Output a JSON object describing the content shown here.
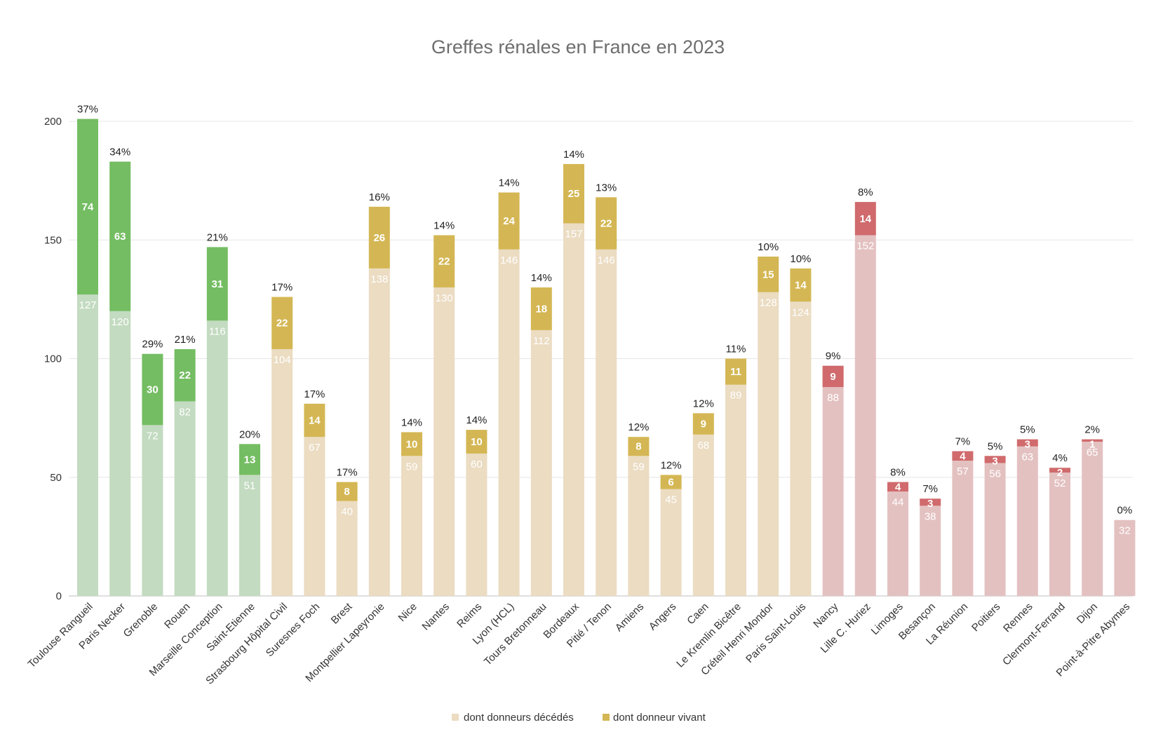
{
  "colors": {
    "green_dark": "#74bd62",
    "green_light": "#c3dbc0",
    "gold_dark": "#d4b754",
    "gold_light": "#ebdcc2",
    "red_dark": "#d06a6c",
    "red_light": "#e4c1c1",
    "title": "#6e6e6e",
    "axis_text": "#333333",
    "grid": "#e6e6e6"
  },
  "chart_data": {
    "type": "bar",
    "stacked": true,
    "title": "Greffes rénales en France en 2023",
    "ylim": [
      0,
      200
    ],
    "yticks": [
      0,
      50,
      100,
      150,
      200
    ],
    "grid": true,
    "legend_position": "bottom-center",
    "categories": [
      "Toulouse Rangueil",
      "Paris Necker",
      "Grenoble",
      "Rouen",
      "Marseille Conception",
      "Saint-Etienne",
      "Strasbourg Hôpital Civil",
      "Suresnes Foch",
      "Brest",
      "Montpellier Lapeyronie",
      "Nice",
      "Nantes",
      "Reims",
      "Lyon (HCL)",
      "Tours Bretonneau",
      "Bordeaux",
      "Pitié / Tenon",
      "Amiens",
      "Angers",
      "Caen",
      "Le Kremlin Bicêtre",
      "Créteil Henri Mondor",
      "Paris Saint-Louis",
      "Nancy",
      "Lille C. Huriez",
      "Limoges",
      "Besançon",
      "La Réunion",
      "Poitiers",
      "Rennes",
      "Clermont-Ferrand",
      "Dijon",
      "Point-à-Pitre Abymes"
    ],
    "series": [
      {
        "name": "dont donneurs décédés",
        "values": [
          127,
          120,
          72,
          82,
          116,
          51,
          104,
          67,
          40,
          138,
          59,
          130,
          60,
          146,
          112,
          157,
          146,
          59,
          45,
          68,
          89,
          128,
          124,
          88,
          152,
          44,
          38,
          57,
          56,
          63,
          52,
          65,
          32
        ]
      },
      {
        "name": "dont donneur vivant",
        "values": [
          74,
          63,
          30,
          22,
          31,
          13,
          22,
          14,
          8,
          26,
          10,
          22,
          10,
          24,
          18,
          25,
          22,
          8,
          6,
          9,
          11,
          15,
          14,
          9,
          14,
          4,
          3,
          4,
          3,
          3,
          2,
          1,
          0
        ]
      }
    ],
    "percent_labels": [
      "37%",
      "34%",
      "29%",
      "21%",
      "21%",
      "20%",
      "17%",
      "17%",
      "17%",
      "16%",
      "14%",
      "14%",
      "14%",
      "14%",
      "14%",
      "14%",
      "13%",
      "12%",
      "12%",
      "12%",
      "11%",
      "10%",
      "10%",
      "9%",
      "8%",
      "8%",
      "7%",
      "7%",
      "5%",
      "5%",
      "4%",
      "2%",
      "0%"
    ],
    "color_groups": [
      "green",
      "green",
      "green",
      "green",
      "green",
      "green",
      "gold",
      "gold",
      "gold",
      "gold",
      "gold",
      "gold",
      "gold",
      "gold",
      "gold",
      "gold",
      "gold",
      "gold",
      "gold",
      "gold",
      "gold",
      "gold",
      "gold",
      "red",
      "red",
      "red",
      "red",
      "red",
      "red",
      "red",
      "red",
      "red",
      "red"
    ]
  }
}
